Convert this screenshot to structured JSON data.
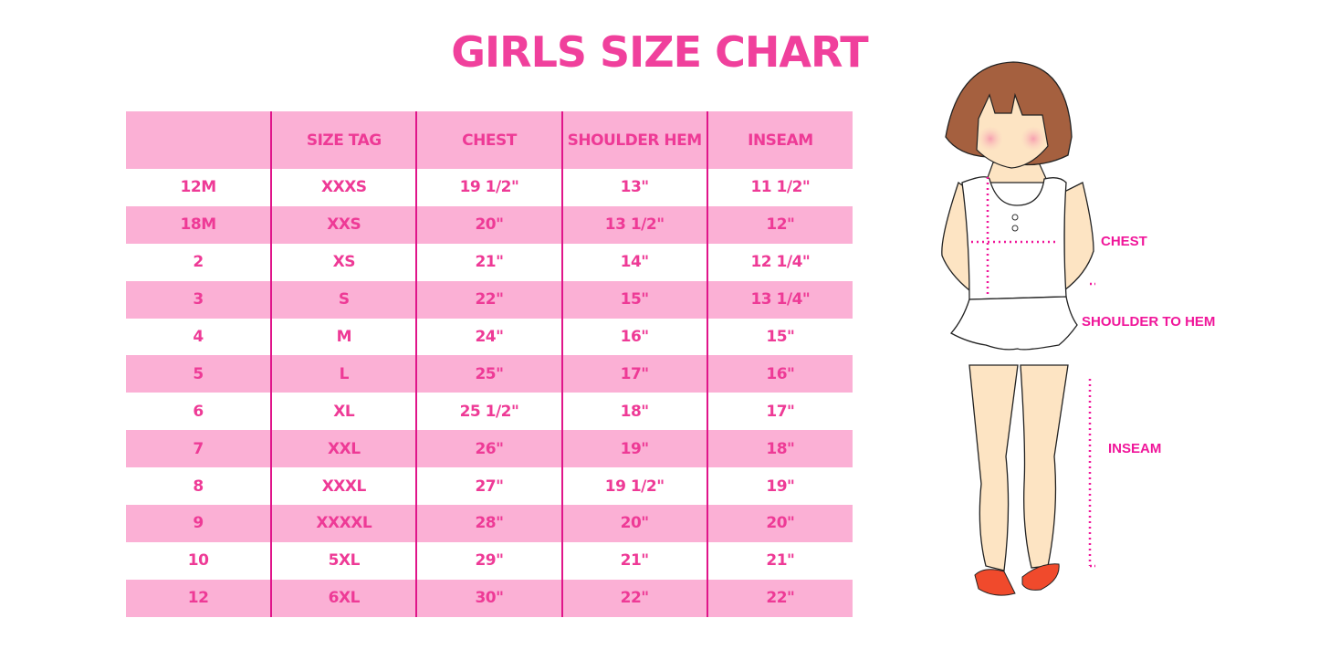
{
  "title": "GIRLS SIZE CHART",
  "table": {
    "headers": [
      "",
      "SIZE TAG",
      "CHEST",
      "SHOULDER HEM",
      "INSEAM"
    ],
    "rows": [
      [
        "12M",
        "XXXS",
        "19 1/2\"",
        "13\"",
        "11 1/2\""
      ],
      [
        "18M",
        "XXS",
        "20\"",
        "13 1/2\"",
        "12\""
      ],
      [
        "2",
        "XS",
        "21\"",
        "14\"",
        "12 1/4\""
      ],
      [
        "3",
        "S",
        "22\"",
        "15\"",
        "13 1/4\""
      ],
      [
        "4",
        "M",
        "24\"",
        "16\"",
        "15\""
      ],
      [
        "5",
        "L",
        "25\"",
        "17\"",
        "16\""
      ],
      [
        "6",
        "XL",
        "25 1/2\"",
        "18\"",
        "17\""
      ],
      [
        "7",
        "XXL",
        "26\"",
        "19\"",
        "18\""
      ],
      [
        "8",
        "XXXL",
        "27\"",
        "19 1/2\"",
        "19\""
      ],
      [
        "9",
        "XXXXL",
        "28\"",
        "20\"",
        "20\""
      ],
      [
        "10",
        "5XL",
        "29\"",
        "21\"",
        "21\""
      ],
      [
        "12",
        "6XL",
        "30\"",
        "22\"",
        "22\""
      ]
    ]
  },
  "figure": {
    "labels": {
      "chest": "CHEST",
      "shoulder_to_hem": "SHOULDER TO HEM",
      "inseam": "INSEAM"
    }
  },
  "colors": {
    "accent": "#f0409c",
    "row_pink": "#fbb0d5",
    "divider": "#e0158a"
  }
}
